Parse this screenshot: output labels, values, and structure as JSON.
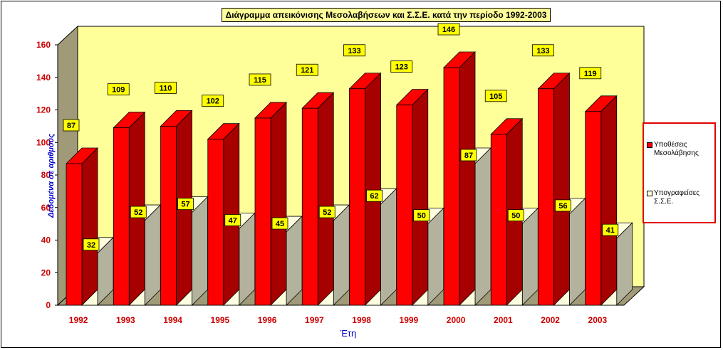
{
  "chart_data": {
    "type": "bar",
    "title": "Διάγραμμα απεικόνισης Μεσολαβήσεων και Σ.Σ.Ε. κατά την περίοδο 1992-2003",
    "xlabel": "Έτη",
    "ylabel": "Δεδομένα σε αριθμούς",
    "ylim": [
      0,
      160
    ],
    "yticks": [
      "0",
      "20",
      "40",
      "60",
      "80",
      "100",
      "120",
      "140",
      "160"
    ],
    "categories": [
      "1992",
      "1993",
      "1994",
      "1995",
      "1996",
      "1997",
      "1998",
      "1999",
      "2000",
      "2001",
      "2002",
      "2003"
    ],
    "series": [
      {
        "name": "Υποθέσεις Μεσολάβησης",
        "color": "#ff0000",
        "values": [
          87,
          109,
          110,
          102,
          115,
          121,
          133,
          123,
          146,
          105,
          133,
          119
        ]
      },
      {
        "name": "Υπογραφείσες Σ.Σ.Ε.",
        "color": "#ffffe0",
        "values": [
          32,
          52,
          57,
          47,
          45,
          52,
          62,
          50,
          87,
          50,
          56,
          41
        ]
      }
    ],
    "grid": false,
    "legend_position": "right",
    "style": "3d-clustered",
    "colors": {
      "wall": "#ffff99",
      "side_wall": "#a09a78",
      "floor": "#a09a78",
      "label_box": "#ffff00",
      "axis_text": "#cc0000",
      "axis_title": "#0000cc"
    }
  }
}
